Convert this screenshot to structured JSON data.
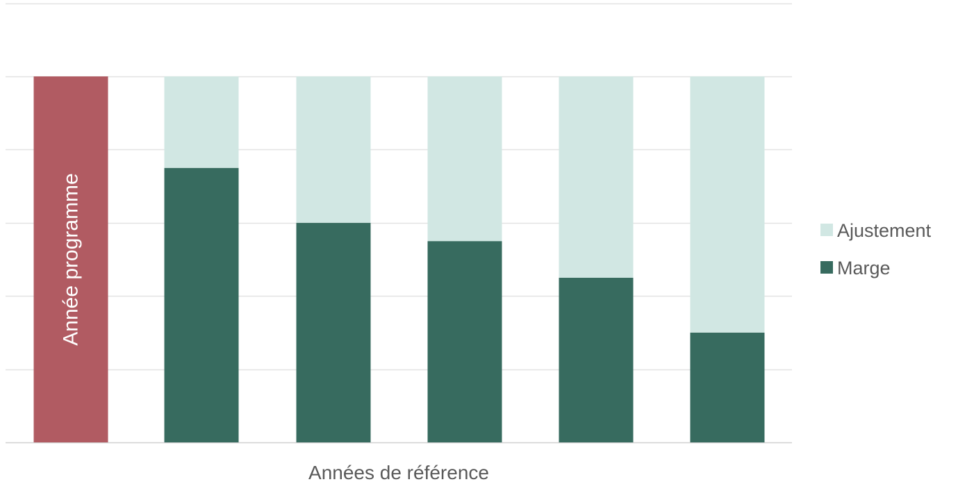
{
  "chart_data": {
    "type": "bar",
    "stacked": true,
    "categories": [
      "",
      "",
      "",
      "",
      "",
      ""
    ],
    "xlabel": "Années de référence",
    "ylabel": "",
    "ylim": [
      0,
      6
    ],
    "grid": true,
    "legend_position": "right",
    "program_bar": {
      "label": "Année programme",
      "value": 5,
      "color": "#B15B62"
    },
    "series": [
      {
        "name": "Marge",
        "color": "#376B5F",
        "values": [
          null,
          3.75,
          3.0,
          2.75,
          2.25,
          1.5
        ]
      },
      {
        "name": "Ajustement",
        "color": "#D1E7E3",
        "values": [
          null,
          1.25,
          2.0,
          2.25,
          2.75,
          3.5
        ]
      }
    ],
    "legend": [
      "Ajustement",
      "Marge"
    ]
  }
}
